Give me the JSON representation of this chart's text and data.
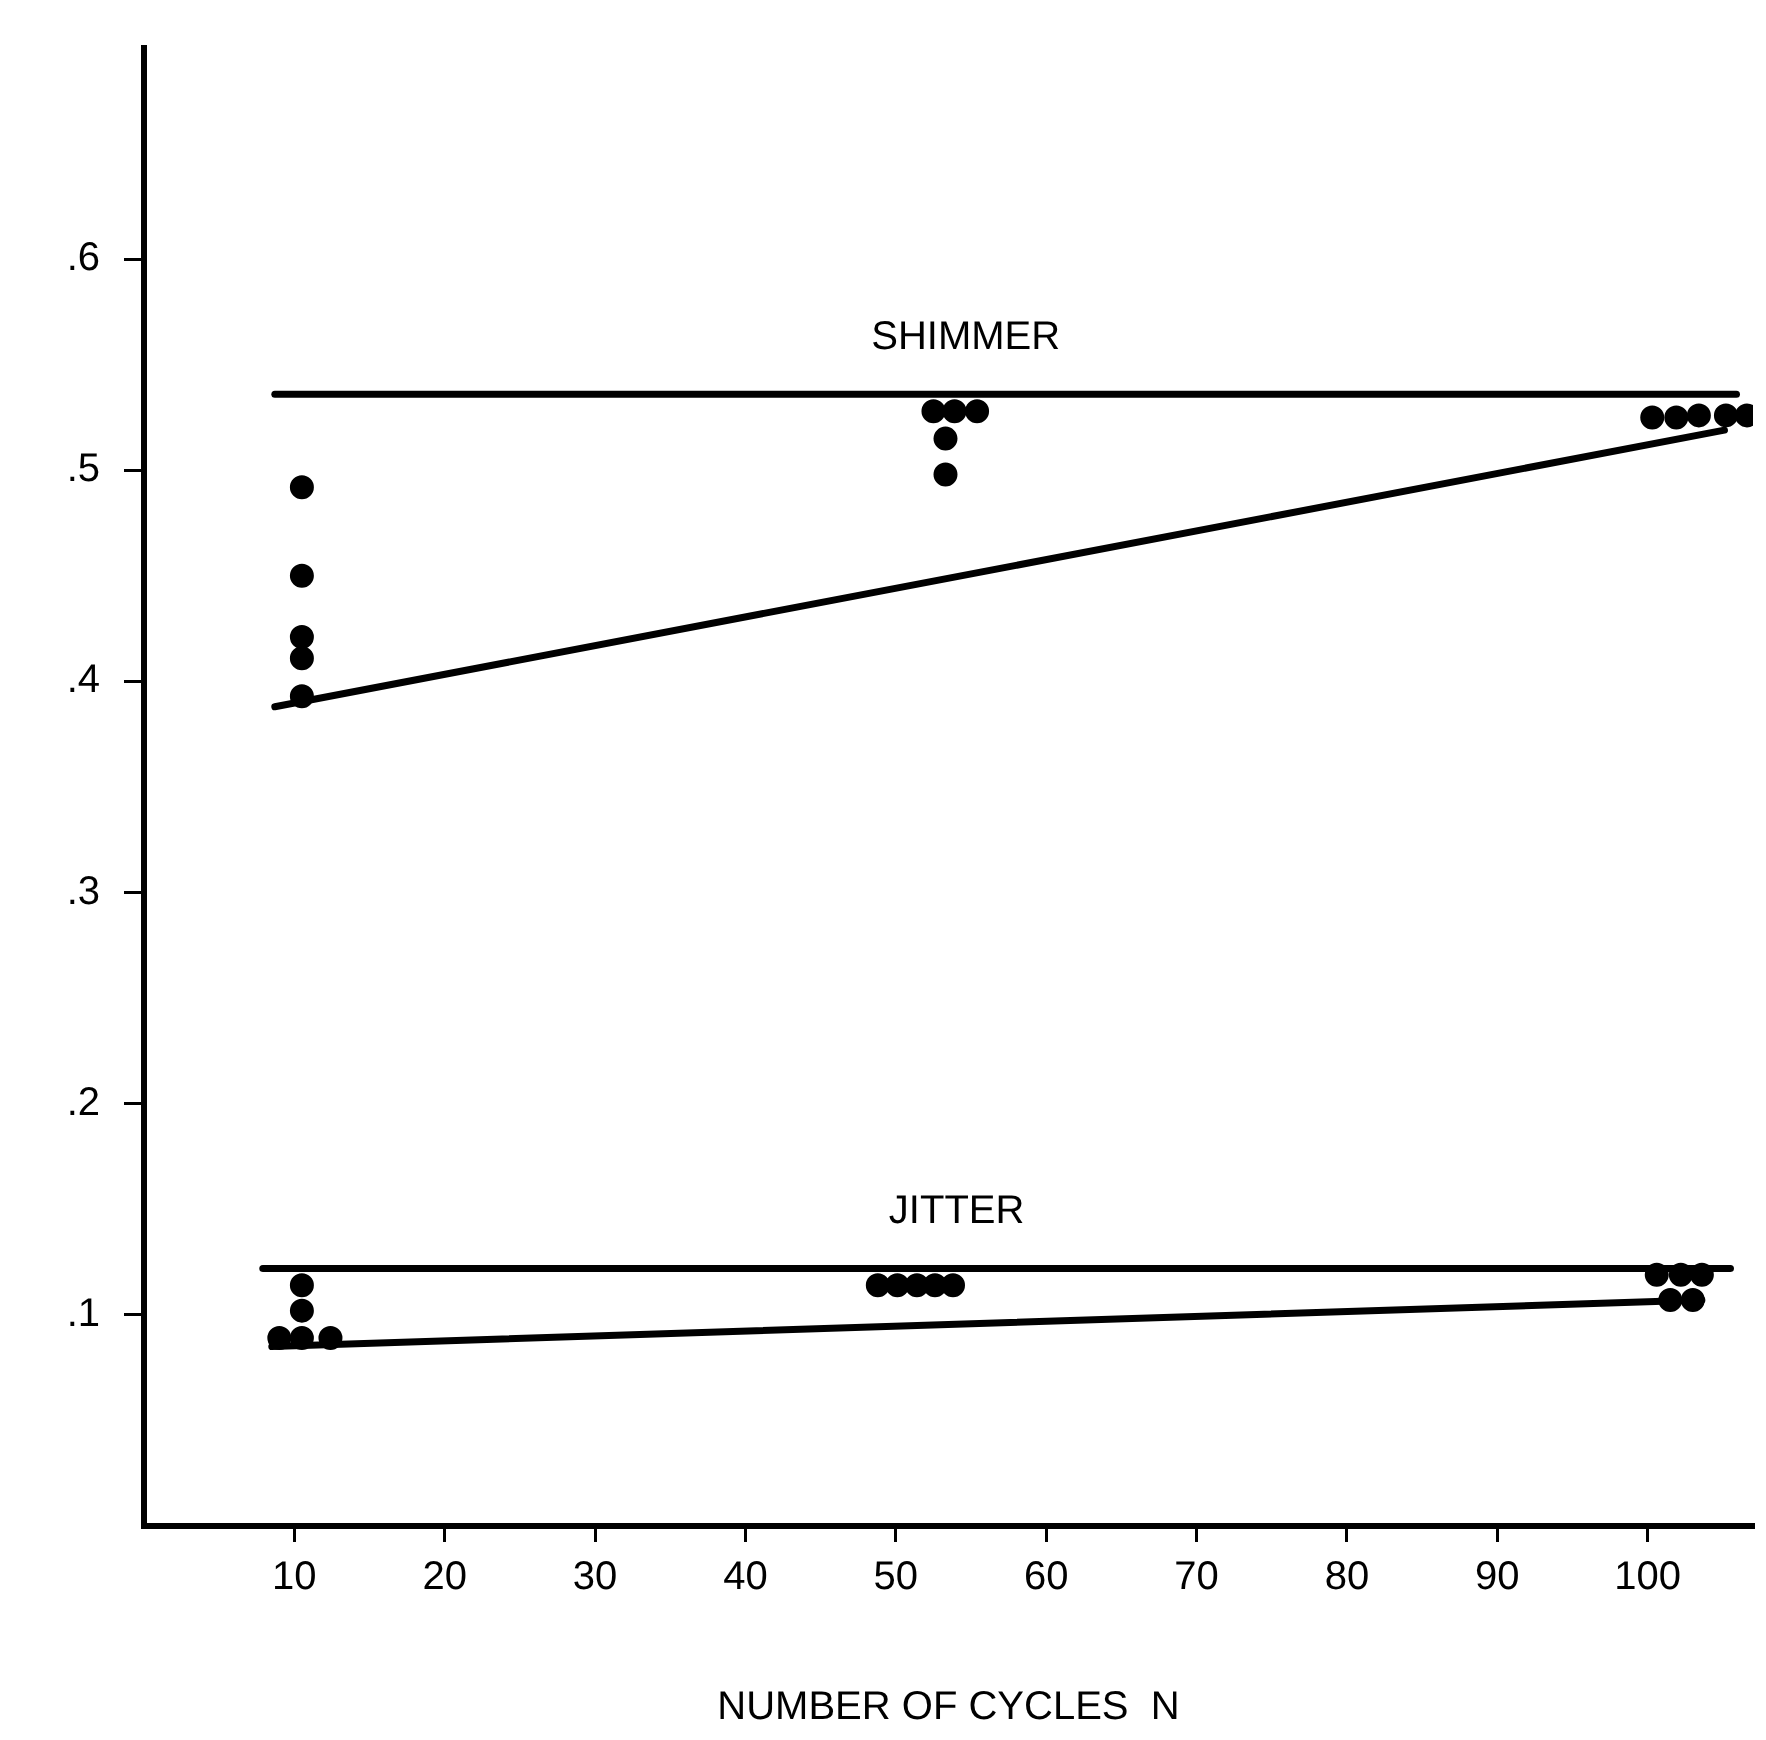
{
  "chart_data": {
    "type": "scatter",
    "xlabel": "NUMBER OF CYCLES  N",
    "xlim": [
      0,
      107
    ],
    "xticks": [
      10,
      20,
      30,
      40,
      50,
      60,
      70,
      80,
      90,
      100
    ],
    "ylim": [
      0,
      0.7
    ],
    "yticks": [
      {
        "value": 0.1,
        "label": ".1"
      },
      {
        "value": 0.2,
        "label": ".2"
      },
      {
        "value": 0.3,
        "label": ".3"
      },
      {
        "value": 0.4,
        "label": ".4"
      },
      {
        "value": 0.5,
        "label": ".5"
      },
      {
        "value": 0.6,
        "label": ".6"
      }
    ],
    "grid": false,
    "legend": false,
    "marker": "circle",
    "series": [
      {
        "color": "#000000",
        "x": [
          10.5,
          10.5,
          10.5,
          10.5,
          10.5,
          52.5,
          53.9,
          55.4,
          53.3,
          53.3,
          100.3,
          101.9,
          103.4,
          105.2,
          106.6
        ],
        "values": [
          0.492,
          0.45,
          0.421,
          0.411,
          0.393,
          0.528,
          0.528,
          0.528,
          0.515,
          0.498,
          0.525,
          0.525,
          0.526,
          0.526,
          0.526
        ]
      },
      {
        "type": "line",
        "name": "SHIMMER",
        "color": "#000000",
        "marker": "none",
        "x": [
          8.7,
          105.9
        ],
        "values": [
          0.536,
          0.536
        ]
      },
      {
        "type": "line",
        "color": "#000000",
        "marker": "none",
        "x": [
          8.7,
          105.1
        ],
        "values": [
          0.388,
          0.519
        ]
      },
      {
        "color": "#000000",
        "x": [
          10.5,
          10.5,
          9.0,
          10.5,
          12.4,
          48.8,
          50.1,
          51.4,
          52.6,
          53.8,
          100.6,
          102.2,
          103.6,
          101.5,
          103.0
        ],
        "values": [
          0.114,
          0.102,
          0.089,
          0.089,
          0.089,
          0.114,
          0.114,
          0.114,
          0.114,
          0.114,
          0.119,
          0.119,
          0.119,
          0.107,
          0.107
        ]
      },
      {
        "type": "line",
        "name": "JITTER",
        "color": "#000000",
        "marker": "none",
        "x": [
          7.9,
          105.5
        ],
        "values": [
          0.122,
          0.122
        ]
      },
      {
        "type": "line",
        "color": "#000000",
        "marker": "none",
        "x": [
          8.5,
          103.6
        ],
        "values": [
          0.085,
          0.107
        ]
      }
    ]
  }
}
